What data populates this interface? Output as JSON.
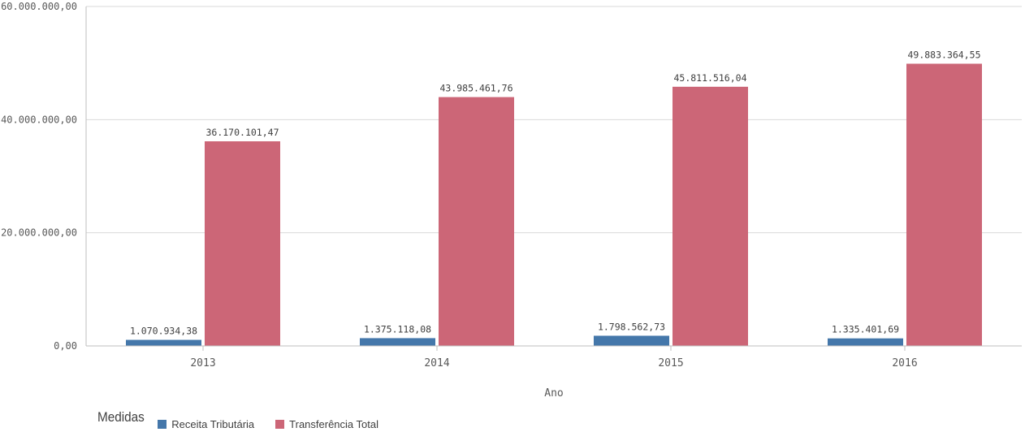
{
  "chart_data": {
    "type": "bar",
    "categories": [
      "2013",
      "2014",
      "2015",
      "2016"
    ],
    "series": [
      {
        "name": "Receita Tributária",
        "values": [
          1070934.38,
          1375118.08,
          1798562.73,
          1335401.69
        ],
        "labels": [
          "1.070.934,38",
          "1.375.118,08",
          "1.798.562,73",
          "1.335.401,69"
        ],
        "color": "#4477aa"
      },
      {
        "name": "Transferência Total",
        "values": [
          36170101.47,
          43985461.76,
          45811516.04,
          49883364.55
        ],
        "labels": [
          "36.170.101,47",
          "43.985.461,76",
          "45.811.516,04",
          "49.883.364,55"
        ],
        "color": "#cc6677"
      }
    ],
    "yticks": [
      {
        "value": 0,
        "label": "0,00"
      },
      {
        "value": 20000000,
        "label": "20.000.000,00"
      },
      {
        "value": 40000000,
        "label": "40.000.000,00"
      },
      {
        "value": 60000000,
        "label": "60.000.000,00"
      }
    ],
    "ylim": [
      0,
      60000000
    ],
    "xlabel": "Ano",
    "ylabel": "",
    "grid": true,
    "legend": {
      "title": "Medidas",
      "position": "bottom-left"
    }
  }
}
